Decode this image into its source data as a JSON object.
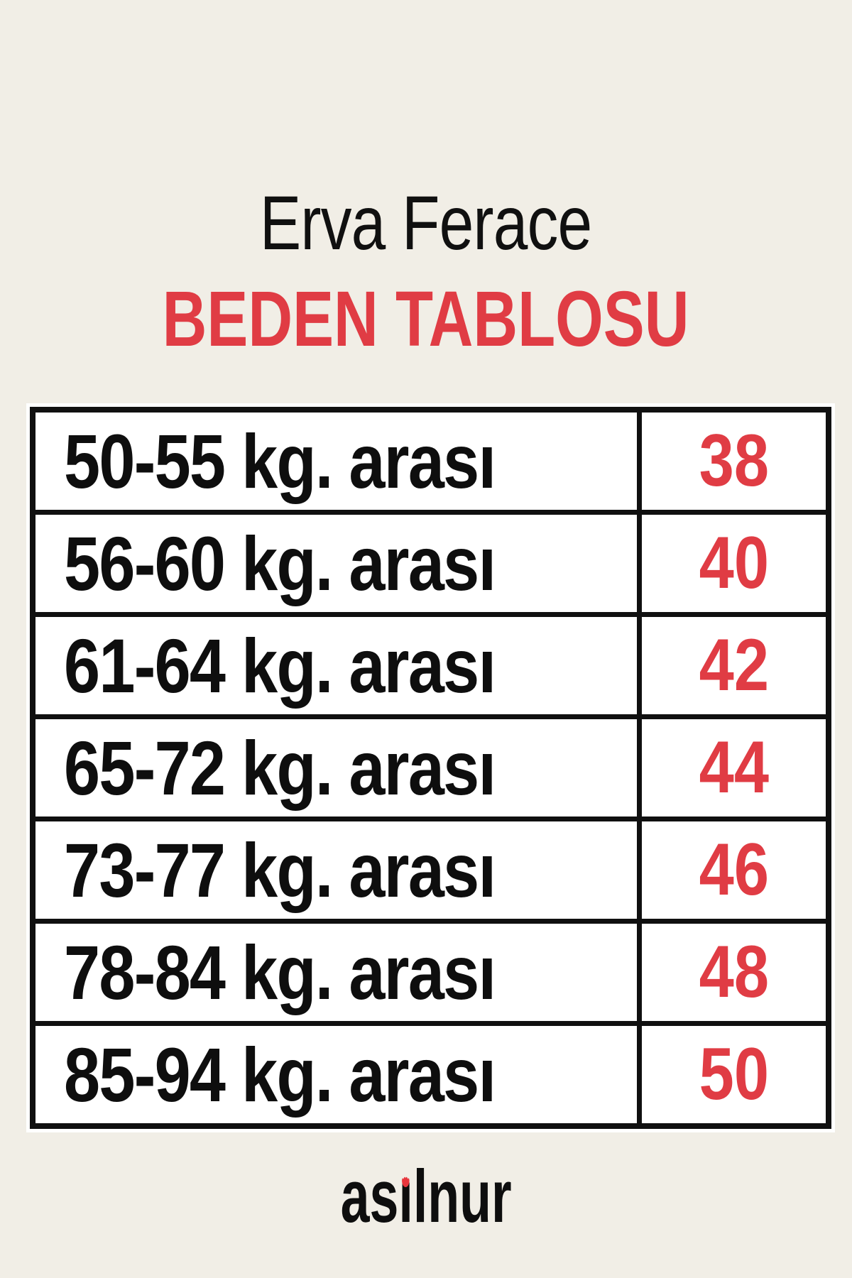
{
  "header": {
    "title": "Erva Ferace",
    "subtitle": "BEDEN TABLOSU"
  },
  "size_table": {
    "rows": [
      {
        "weight_range": "50-55 kg. arası",
        "size": "38"
      },
      {
        "weight_range": "56-60 kg. arası",
        "size": "40"
      },
      {
        "weight_range": "61-64 kg. arası",
        "size": "42"
      },
      {
        "weight_range": "65-72 kg. arası",
        "size": "44"
      },
      {
        "weight_range": "73-77 kg. arası",
        "size": "46"
      },
      {
        "weight_range": "78-84 kg. arası",
        "size": "48"
      },
      {
        "weight_range": "85-94 kg. arası",
        "size": "50"
      }
    ]
  },
  "footer": {
    "brand_full": "asilnur",
    "brand_prefix": "as",
    "brand_dotless_i": "ı",
    "brand_suffix": "lnur"
  },
  "colors": {
    "page_background": "#f1eee6",
    "accent_red": "#e03c44",
    "text_black": "#0e0e0e",
    "border_black": "#101010",
    "cell_background": "#ffffff"
  },
  "chart_data": {
    "type": "table",
    "title": "Erva Ferace",
    "subtitle": "BEDEN TABLOSU",
    "columns": [
      "weight_range",
      "size"
    ],
    "rows": [
      [
        "50-55 kg. arası",
        38
      ],
      [
        "56-60 kg. arası",
        40
      ],
      [
        "61-64 kg. arası",
        42
      ],
      [
        "65-72 kg. arası",
        44
      ],
      [
        "73-77 kg. arası",
        46
      ],
      [
        "78-84 kg. arası",
        48
      ],
      [
        "85-94 kg. arası",
        50
      ]
    ],
    "legend_position": "none",
    "grid": true
  }
}
